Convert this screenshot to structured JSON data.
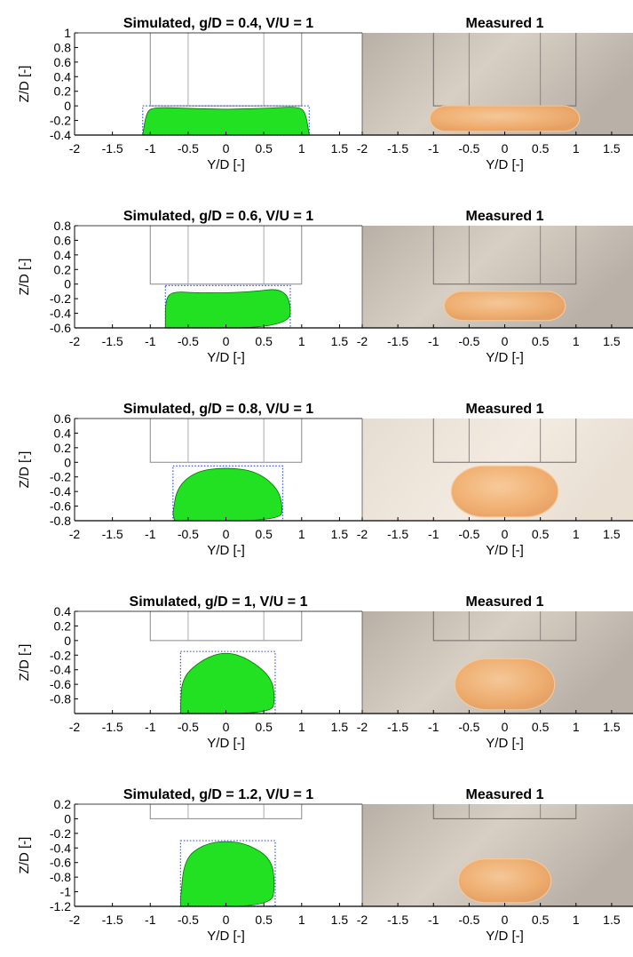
{
  "figure": {
    "rows": [
      {
        "simulated": {
          "title": "Simulated, g/D = 0.4, V/U = 1",
          "xlabel": "Y/D [-]",
          "ylabel": "Z/D [-]",
          "yticks": [
            "1",
            "0.8",
            "0.6",
            "0.4",
            "0.2",
            "0",
            "-0.2",
            "-0.4"
          ],
          "xticks": [
            "-2",
            "-1.5",
            "-1",
            "-0.5",
            "0",
            "0.5",
            "1",
            "1.5"
          ]
        },
        "measured": {
          "title": "Measured 1",
          "xlabel": "Y/D [-]",
          "xticks": [
            "-2",
            "-1.5",
            "-1",
            "-0.5",
            "0",
            "0.5",
            "1",
            "1.5"
          ]
        }
      },
      {
        "simulated": {
          "title": "Simulated, g/D = 0.6, V/U = 1",
          "xlabel": "Y/D [-]",
          "ylabel": "Z/D [-]",
          "yticks": [
            "0.8",
            "0.6",
            "0.4",
            "0.2",
            "0",
            "-0.2",
            "-0.4",
            "-0.6"
          ],
          "xticks": [
            "-2",
            "-1.5",
            "-1",
            "-0.5",
            "0",
            "0.5",
            "1",
            "1.5"
          ]
        },
        "measured": {
          "title": "Measured 1",
          "xlabel": "Y/D [-]",
          "xticks": [
            "-2",
            "-1.5",
            "-1",
            "-0.5",
            "0",
            "0.5",
            "1",
            "1.5"
          ]
        }
      },
      {
        "simulated": {
          "title": "Simulated, g/D = 0.8, V/U = 1",
          "xlabel": "Y/D [-]",
          "ylabel": "Z/D [-]",
          "yticks": [
            "0.6",
            "0.4",
            "0.2",
            "0",
            "-0.2",
            "-0.4",
            "-0.6",
            "-0.8"
          ],
          "xticks": [
            "-2",
            "-1.5",
            "-1",
            "-0.5",
            "0",
            "0.5",
            "1",
            "1.5"
          ]
        },
        "measured": {
          "title": "Measured 1",
          "xlabel": "Y/D [-]",
          "xticks": [
            "-2",
            "-1.5",
            "-1",
            "-0.5",
            "0",
            "0.5",
            "1",
            "1.5"
          ]
        }
      },
      {
        "simulated": {
          "title": "Simulated, g/D = 1, V/U = 1",
          "xlabel": "Y/D [-]",
          "ylabel": "Z/D [-]",
          "yticks": [
            "0.4",
            "0.2",
            "0",
            "-0.2",
            "-0.4",
            "-0.6",
            "-0.8"
          ],
          "xticks": [
            "-2",
            "-1.5",
            "-1",
            "-0.5",
            "0",
            "0.5",
            "1",
            "1.5"
          ]
        },
        "measured": {
          "title": "Measured 1",
          "xlabel": "Y/D [-]",
          "xticks": [
            "-2",
            "-1.5",
            "-1",
            "-0.5",
            "0",
            "0.5",
            "1",
            "1.5"
          ]
        }
      },
      {
        "simulated": {
          "title": "Simulated, g/D = 1.2, V/U = 1",
          "xlabel": "Y/D [-]",
          "ylabel": "Z/D [-]",
          "yticks": [
            "0.2",
            "0",
            "-0.2",
            "-0.4",
            "-0.6",
            "-0.8",
            "-1",
            "-1.2"
          ],
          "xticks": [
            "-2",
            "-1.5",
            "-1",
            "-0.5",
            "0",
            "0.5",
            "1",
            "1.5"
          ]
        },
        "measured": {
          "title": "Measured 1",
          "xlabel": "Y/D [-]",
          "xticks": [
            "-2",
            "-1.5",
            "-1",
            "-0.5",
            "0",
            "0.5",
            "1",
            "1.5"
          ]
        }
      }
    ]
  },
  "colors": {
    "simulated_fill": "#22e022",
    "bounding_box": "#3355ee",
    "measured_bg_gray": "#b9b1a8",
    "measured_bg_light": "#f1e8dd",
    "measured_jet": "#f2ad6b",
    "channel_lines": "#888888"
  },
  "chart_data": [
    {
      "type": "area",
      "panel": "simulated",
      "title": "Simulated, g/D = 0.4, V/U = 1",
      "xlabel": "Y/D [-]",
      "ylabel": "Z/D [-]",
      "xlim": [
        -2,
        1.8
      ],
      "ylim": [
        -0.4,
        1
      ],
      "channel_walls_y": [
        -1,
        -0.5,
        0.5,
        1
      ],
      "jet_bbox": {
        "y": [
          -1.1,
          1.1
        ],
        "z": [
          -0.4,
          0
        ]
      },
      "jet_outline": {
        "y": [
          -1.1,
          -1.05,
          -0.95,
          -0.6,
          0,
          0.6,
          0.95,
          1.05,
          1.1,
          1.1,
          -1.1
        ],
        "z": [
          -0.4,
          -0.08,
          -0.02,
          -0.03,
          -0.05,
          -0.03,
          -0.01,
          -0.08,
          -0.4,
          -0.4,
          -0.4
        ]
      }
    },
    {
      "type": "image",
      "panel": "measured",
      "title": "Measured 1",
      "xlabel": "Y/D [-]",
      "xlim": [
        -2,
        1.8
      ],
      "ylim": [
        -0.4,
        1
      ],
      "channel_walls_y": [
        -1,
        -0.5,
        0.5,
        1
      ],
      "jet_extent": {
        "y": [
          -1.05,
          1.05
        ],
        "z": [
          -0.35,
          0
        ]
      }
    },
    {
      "type": "area",
      "panel": "simulated",
      "title": "Simulated, g/D = 0.6, V/U = 1",
      "xlabel": "Y/D [-]",
      "ylabel": "Z/D [-]",
      "xlim": [
        -2,
        1.8
      ],
      "ylim": [
        -0.6,
        0.8
      ],
      "channel_walls_y": [
        -1,
        -0.5,
        0.5,
        1
      ],
      "jet_bbox": {
        "y": [
          -0.8,
          0.85
        ],
        "z": [
          -0.6,
          -0.02
        ]
      },
      "jet_outline": {
        "y": [
          -0.8,
          -0.8,
          -0.7,
          -0.4,
          0,
          0.4,
          0.7,
          0.85,
          0.85,
          -0.8
        ],
        "z": [
          -0.6,
          -0.2,
          -0.1,
          -0.12,
          -0.12,
          -0.1,
          -0.06,
          -0.2,
          -0.6,
          -0.6
        ]
      }
    },
    {
      "type": "image",
      "panel": "measured",
      "title": "Measured 1",
      "xlabel": "Y/D [-]",
      "xlim": [
        -2,
        1.8
      ],
      "ylim": [
        -0.6,
        0.8
      ],
      "channel_walls_y": [
        -1,
        -0.5,
        0.5,
        1
      ],
      "jet_extent": {
        "y": [
          -0.85,
          0.85
        ],
        "z": [
          -0.5,
          -0.1
        ]
      }
    },
    {
      "type": "area",
      "panel": "simulated",
      "title": "Simulated, g/D = 0.8, V/U = 1",
      "xlabel": "Y/D [-]",
      "ylabel": "Z/D [-]",
      "xlim": [
        -2,
        1.8
      ],
      "ylim": [
        -0.8,
        0.6
      ],
      "channel_walls_y": [
        -1,
        -0.5,
        0.5,
        1
      ],
      "jet_bbox": {
        "y": [
          -0.7,
          0.75
        ],
        "z": [
          -0.8,
          -0.05
        ]
      },
      "jet_outline": {
        "y": [
          -0.7,
          -0.65,
          -0.4,
          0,
          0.4,
          0.68,
          0.75,
          0.72,
          -0.68
        ],
        "z": [
          -0.7,
          -0.35,
          -0.12,
          -0.07,
          -0.12,
          -0.35,
          -0.6,
          -0.8,
          -0.8
        ]
      }
    },
    {
      "type": "image",
      "panel": "measured",
      "title": "Measured 1",
      "xlabel": "Y/D [-]",
      "xlim": [
        -2,
        1.8
      ],
      "ylim": [
        -0.8,
        0.6
      ],
      "channel_walls_y": [
        -1,
        -0.5,
        0.5,
        1
      ],
      "jet_extent": {
        "y": [
          -0.75,
          0.75
        ],
        "z": [
          -0.75,
          -0.05
        ]
      }
    },
    {
      "type": "area",
      "panel": "simulated",
      "title": "Simulated, g/D = 1, V/U = 1",
      "xlabel": "Y/D [-]",
      "ylabel": "Z/D [-]",
      "xlim": [
        -2,
        1.8
      ],
      "ylim": [
        -1,
        0.4
      ],
      "channel_walls_y": [
        -1,
        -0.5,
        0.5,
        1
      ],
      "jet_bbox": {
        "y": [
          -0.6,
          0.65
        ],
        "z": [
          -1,
          -0.15
        ]
      },
      "jet_outline": {
        "y": [
          -0.6,
          -0.58,
          -0.3,
          0,
          0.3,
          0.6,
          0.65,
          0.6,
          -0.6
        ],
        "z": [
          -0.9,
          -0.5,
          -0.25,
          -0.15,
          -0.25,
          -0.5,
          -0.8,
          -1,
          -1
        ]
      }
    },
    {
      "type": "image",
      "panel": "measured",
      "title": "Measured 1",
      "xlabel": "Y/D [-]",
      "xlim": [
        -2,
        1.8
      ],
      "ylim": [
        -1,
        0.4
      ],
      "channel_walls_y": [
        -1,
        -0.5,
        0.5,
        1
      ],
      "jet_extent": {
        "y": [
          -0.7,
          0.7
        ],
        "z": [
          -0.95,
          -0.25
        ]
      }
    },
    {
      "type": "area",
      "panel": "simulated",
      "title": "Simulated, g/D = 1.2, V/U = 1",
      "xlabel": "Y/D [-]",
      "ylabel": "Z/D [-]",
      "xlim": [
        -2,
        1.8
      ],
      "ylim": [
        -1.2,
        0.2
      ],
      "channel_walls_y": [
        -1,
        -0.5,
        0.5,
        1
      ],
      "jet_bbox": {
        "y": [
          -0.6,
          0.65
        ],
        "z": [
          -1.2,
          -0.3
        ]
      },
      "jet_outline": {
        "y": [
          -0.6,
          -0.55,
          -0.3,
          0,
          0.3,
          0.6,
          0.65,
          0.6,
          -0.6
        ],
        "z": [
          -1.1,
          -0.55,
          -0.35,
          -0.3,
          -0.35,
          -0.55,
          -0.9,
          -1.2,
          -1.2
        ]
      }
    },
    {
      "type": "image",
      "panel": "measured",
      "title": "Measured 1",
      "xlabel": "Y/D [-]",
      "xlim": [
        -2,
        1.8
      ],
      "ylim": [
        -1.2,
        0.2
      ],
      "channel_walls_y": [
        -1,
        -0.5,
        0.5,
        1
      ],
      "jet_extent": {
        "y": [
          -0.65,
          0.65
        ],
        "z": [
          -1.15,
          -0.55
        ]
      }
    }
  ]
}
